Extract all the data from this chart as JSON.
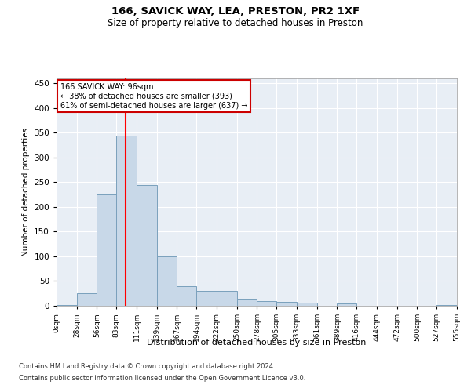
{
  "title1": "166, SAVICK WAY, LEA, PRESTON, PR2 1XF",
  "title2": "Size of property relative to detached houses in Preston",
  "xlabel": "Distribution of detached houses by size in Preston",
  "ylabel": "Number of detached properties",
  "bin_edges": [
    0,
    28,
    56,
    83,
    111,
    139,
    167,
    194,
    222,
    250,
    278,
    305,
    333,
    361,
    389,
    416,
    444,
    472,
    500,
    527,
    555
  ],
  "bar_heights": [
    2,
    25,
    225,
    345,
    245,
    100,
    40,
    30,
    30,
    13,
    10,
    8,
    6,
    0,
    5,
    0,
    0,
    0,
    0,
    1
  ],
  "bar_color": "#c8d8e8",
  "bar_edge_color": "#7aa0bc",
  "property_size": 96,
  "red_line_x": 96,
  "annotation_line1": "166 SAVICK WAY: 96sqm",
  "annotation_line2": "← 38% of detached houses are smaller (393)",
  "annotation_line3": "61% of semi-detached houses are larger (637) →",
  "annotation_box_color": "#ffffff",
  "annotation_box_edge": "#cc0000",
  "ylim": [
    0,
    460
  ],
  "yticks": [
    0,
    50,
    100,
    150,
    200,
    250,
    300,
    350,
    400,
    450
  ],
  "bg_color": "#e8eef5",
  "footer1": "Contains HM Land Registry data © Crown copyright and database right 2024.",
  "footer2": "Contains public sector information licensed under the Open Government Licence v3.0."
}
